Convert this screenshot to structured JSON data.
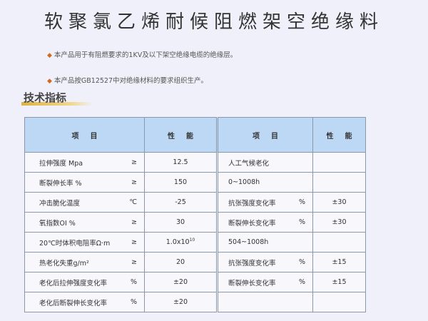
{
  "title": "软聚氯乙烯耐候阻燃架空绝缘料",
  "bullets": [
    "本产品用于有阻燃要求的1KV及以下架空绝缘电缆的绝缘层。",
    "本产品按GB12527中对绝缘材料的要求组织生产。"
  ],
  "section_title": "技术指标",
  "table": {
    "headers": [
      "项目",
      "性能",
      "项目",
      "性能"
    ],
    "left_rows": [
      {
        "name": "拉伸强度 Mpa",
        "unit": "≥",
        "value": "12.5"
      },
      {
        "name": "断裂伸长率 %",
        "unit": "≥",
        "value": "150"
      },
      {
        "name": "冲击脆化温度",
        "unit": "℃",
        "value": "-25"
      },
      {
        "name": "氧指数OI %",
        "unit": "≥",
        "value": "30"
      },
      {
        "name": "20℃时体积电阻率Ω·m",
        "unit": "≥",
        "value": "1.0x10",
        "sup": "10"
      },
      {
        "name": "热老化失重g/m²",
        "unit": "≥",
        "value": "20"
      },
      {
        "name": "老化后拉伸强度变化率",
        "unit": "%",
        "value": "±20"
      },
      {
        "name": "老化后断裂伸长变化率",
        "unit": "%",
        "value": "±20"
      }
    ],
    "right_rows": [
      {
        "name": "人工气候老化",
        "unit": "",
        "value": ""
      },
      {
        "name": "0~1008h",
        "unit": "",
        "value": ""
      },
      {
        "name": "抗张强度变化率",
        "unit": "%",
        "value": "±30"
      },
      {
        "name": "断裂伸长变化率",
        "unit": "%",
        "value": "±30"
      },
      {
        "name": "504~1008h",
        "unit": "",
        "value": ""
      },
      {
        "name": "抗张强度变化率",
        "unit": "%",
        "value": "±15"
      },
      {
        "name": "断裂伸长变化率",
        "unit": "%",
        "value": "±15"
      },
      {
        "name": "",
        "unit": "",
        "value": ""
      }
    ]
  },
  "colors": {
    "header_bg": "#bcd8f4",
    "bullet": "#d46a1a",
    "section_bar": "#e0b240"
  }
}
